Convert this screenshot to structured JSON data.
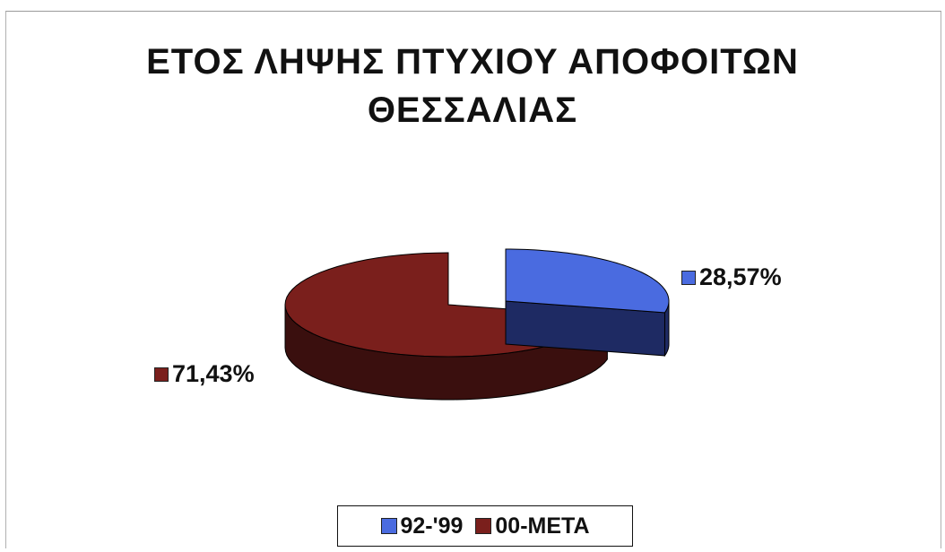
{
  "chart_data": {
    "type": "pie",
    "title_lines": [
      "ΕΤΟΣ ΛΗΨΗΣ ΠΤΥΧΙΟΥ ΑΠΟΦΟΙΤΩΝ",
      "ΘΕΣΣΑΛΙΑΣ"
    ],
    "three_d": true,
    "exploded": true,
    "legend_position": "bottom",
    "slices": [
      {
        "label": "92-'99",
        "value": 28.57,
        "display": "28,57%",
        "color": "#4a6be0",
        "side_color": "#1e2a63"
      },
      {
        "label": "00-ΜΕΤΑ",
        "value": 71.43,
        "display": "71,43%",
        "color": "#7a1f1c",
        "side_color": "#3a0f0e"
      }
    ]
  }
}
